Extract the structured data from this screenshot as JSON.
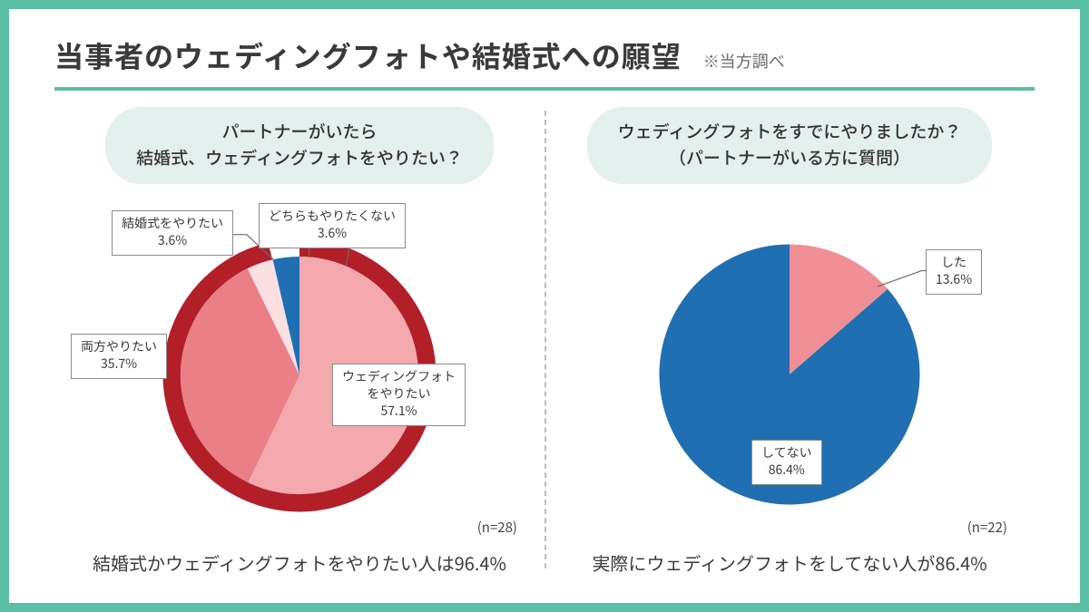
{
  "palette": {
    "frame_border": "#5bbfa4",
    "hr": "#5bbfa4",
    "pill_bg": "#e3f0ed",
    "text": "#3a3a3a"
  },
  "header": {
    "title": "当事者のウェディングフォトや結婚式への願望",
    "note": "※当方調べ",
    "title_fontsize": 32,
    "note_fontsize": 18
  },
  "left": {
    "question_line1": "パートナーがいたら",
    "question_line2": "結婚式、ウェディングフォトをやりたい？",
    "n_label": "(n=28)",
    "summary": "結婚式かウェディングフォトをやりたい人は96.4%",
    "chart": {
      "type": "pie",
      "ring": true,
      "ring_color": "#b21f28",
      "ring_arc_deg": 346.8,
      "outer_radius": 155,
      "inner_radius": 135,
      "slices": [
        {
          "label": "ウェディングフォト\nをやりたい",
          "value": 57.1,
          "pct_text": "57.1%",
          "color": "#f3a9ae"
        },
        {
          "label": "両方やりたい",
          "value": 35.7,
          "pct_text": "35.7%",
          "color": "#eb7f88"
        },
        {
          "label": "結婚式をやりたい",
          "value": 3.6,
          "pct_text": "3.6%",
          "color": "#fbe0e2"
        },
        {
          "label": "どちらもやりたくない",
          "value": 3.6,
          "pct_text": "3.6%",
          "color": "#1f6fb2"
        }
      ],
      "label_fontsize": 14
    }
  },
  "right": {
    "question_line1": "ウェディングフォトをすでにやりましたか？",
    "question_line2": "（パートナーがいる方に質問）",
    "n_label": "(n=22)",
    "summary": "実際にウェディングフォトをしてない人が86.4%",
    "chart": {
      "type": "pie",
      "ring": false,
      "outer_radius": 148,
      "slices": [
        {
          "label": "した",
          "value": 13.6,
          "pct_text": "13.6%",
          "color": "#f08f96"
        },
        {
          "label": "してない",
          "value": 86.4,
          "pct_text": "86.4%",
          "color": "#1f6fb2"
        }
      ],
      "label_fontsize": 14
    }
  }
}
